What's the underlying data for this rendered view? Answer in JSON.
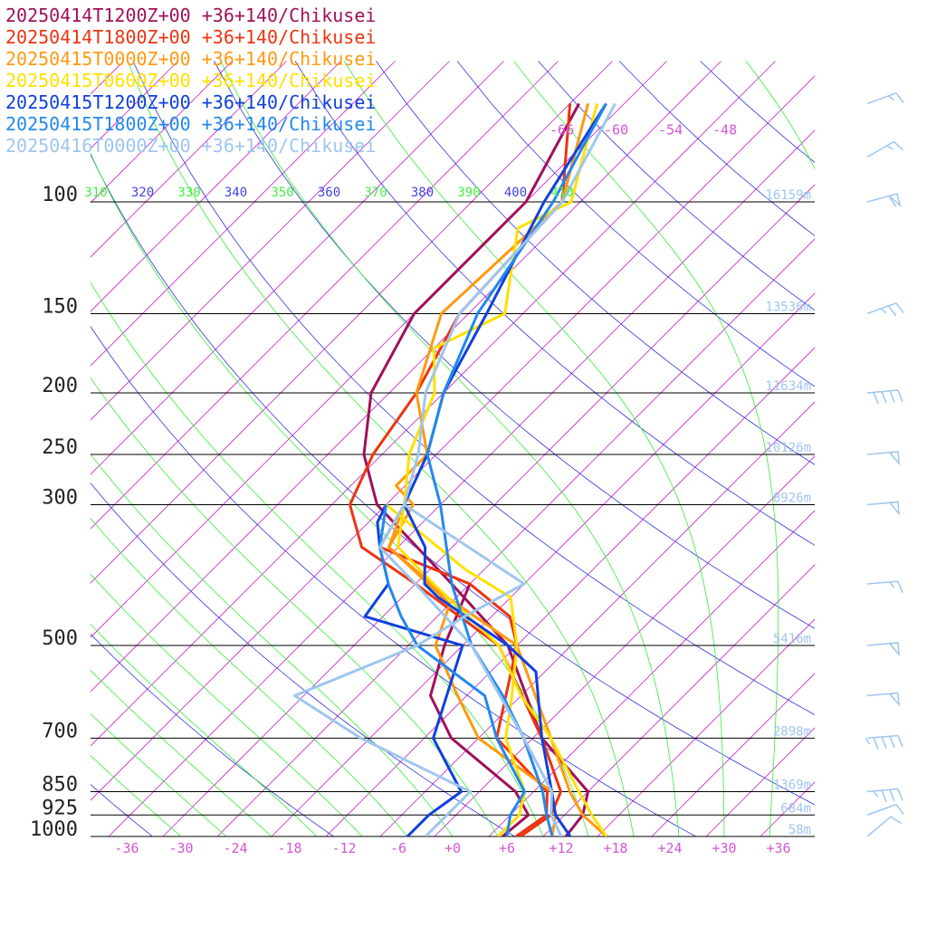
{
  "chart_data": {
    "type": "line",
    "title": "",
    "xlabel": "",
    "ylabel": "",
    "x_axis": {
      "ticks": [
        -36,
        -30,
        -24,
        -18,
        -12,
        -6,
        0,
        6,
        12,
        18,
        24,
        30,
        36
      ],
      "tick_labels": [
        "-36",
        "-30",
        "-24",
        "-18",
        "-12",
        "-6",
        "+0",
        "+6",
        "+12",
        "+18",
        "+24",
        "+30",
        "+36"
      ],
      "xlim": [
        -40,
        40
      ],
      "color": "#d455d4"
    },
    "y_axis": {
      "scale": "log",
      "ylim": [
        1000,
        100
      ],
      "levels": [
        100,
        150,
        200,
        250,
        300,
        500,
        700,
        850,
        925,
        1000
      ],
      "level_labels": [
        "100",
        "150",
        "200",
        "250",
        "300",
        "500",
        "700",
        "850",
        "925",
        "1000"
      ],
      "heights": [
        "16159m",
        "13536m",
        "11634m",
        "10126m",
        "8926m",
        "5416m",
        "2898m",
        "1369m",
        "684m",
        "58m"
      ],
      "height_levels": [
        100,
        150,
        200,
        250,
        300,
        500,
        700,
        850,
        925,
        1000
      ],
      "height_color": "#9ec6ef"
    },
    "upper_temp_labels": {
      "values": [
        "-66",
        "-60",
        "-54",
        "-48"
      ],
      "temps": [
        -66,
        -60,
        -54,
        -48
      ],
      "pressure": 77,
      "color": "#d455d4"
    },
    "theta_labels": {
      "values": [
        "310",
        "320",
        "330",
        "340",
        "350",
        "360",
        "370",
        "380",
        "390",
        "400",
        "410"
      ],
      "thetas": [
        310,
        320,
        330,
        340,
        350,
        360,
        370,
        380,
        390,
        400,
        410
      ],
      "colors": [
        "#44ee44",
        "#4444dd",
        "#44ee44",
        "#4444dd",
        "#44ee44",
        "#4444dd",
        "#44ee44",
        "#4444dd",
        "#44ee44",
        "#4444dd",
        "#44ee44"
      ]
    },
    "isotherm_color": "#cc22cc",
    "moist_adiabat_color": "#33ee33",
    "dry_adiabat_color": "#3333dd",
    "grid": true,
    "legend_position": "top-left",
    "series": [
      {
        "name": "20250414T1200Z+00 +36+140/Chikusei",
        "color": "#a0105a",
        "temperature": {
          "p": [
            1000,
            925,
            850,
            700,
            500,
            400,
            300,
            250,
            200,
            150,
            100,
            70
          ],
          "t": [
            12.5,
            12.0,
            10.0,
            -1.0,
            -15.0,
            -28.0,
            -45.0,
            -52.0,
            -58.0,
            -62.0,
            -62.0,
            -67.0
          ]
        },
        "dewpoint": {
          "p": [
            1000,
            925,
            850,
            700,
            600,
            500,
            400
          ],
          "t": [
            5.5,
            6.0,
            2.0,
            -11.0,
            -18.0,
            -22.0,
            -26.0
          ]
        }
      },
      {
        "name": "20250414T1800Z+00 +36+140/Chikusei",
        "color": "#ee3311",
        "temperature": {
          "p": [
            1000,
            925,
            850,
            700,
            500,
            400,
            350,
            300,
            250,
            200,
            150,
            100,
            70
          ],
          "t": [
            7.5,
            8.5,
            7.0,
            -1.0,
            -16.0,
            -32.0,
            -42.0,
            -48.0,
            -51.0,
            -53.0,
            -57.0,
            -58.0,
            -68.0
          ]
        },
        "dewpoint": {
          "p": [
            1000,
            925,
            850,
            700,
            500,
            450,
            400,
            350,
            300
          ],
          "t": [
            7.0,
            8.0,
            5.5,
            -6.0,
            -14.0,
            -18.0,
            -26.0,
            -40.0,
            -42.0
          ]
        }
      },
      {
        "name": "20250415T0000Z+00 +36+140/Chikusei",
        "color": "#ff9911",
        "temperature": {
          "p": [
            1000,
            925,
            850,
            700,
            500,
            420,
            350,
            300,
            280,
            250,
            200,
            150,
            100,
            70
          ],
          "t": [
            17.0,
            12.0,
            8.0,
            0.0,
            -14.0,
            -27.0,
            -39.0,
            -41.0,
            -45.0,
            -45.0,
            -53.0,
            -59.0,
            -58.0,
            -66.0
          ]
        },
        "dewpoint": {
          "p": [
            1000,
            925,
            850,
            700,
            600,
            500,
            430,
            350,
            300
          ],
          "t": [
            11.0,
            9.0,
            6.0,
            -8.0,
            -15.0,
            -23.0,
            -26.0,
            -39.0,
            -42.0
          ]
        }
      },
      {
        "name": "20250415T0600Z+00 +36+140/Chikusei",
        "color": "#ffe000",
        "temperature": {
          "p": [
            1000,
            925,
            850,
            700,
            600,
            500,
            400,
            350,
            300,
            250,
            200,
            170,
            150,
            110,
            100,
            70
          ],
          "t": [
            17.0,
            13.0,
            9.0,
            0.0,
            -8.0,
            -16.0,
            -30.0,
            -38.0,
            -42.0,
            -47.0,
            -51.0,
            -56.0,
            -52.0,
            -60.0,
            -57.0,
            -65.0
          ]
        },
        "dewpoint": {
          "p": [
            1000,
            925,
            850,
            700,
            600,
            500,
            420,
            380,
            300
          ],
          "t": [
            5.0,
            5.0,
            3.0,
            -5.0,
            -9.0,
            -14.0,
            -20.0,
            -28.0,
            -44.0
          ]
        }
      },
      {
        "name": "20250415T1200Z+00 +36+140/Chikusei",
        "color": "#1040dd",
        "temperature": {
          "p": [
            1000,
            925,
            850,
            700,
            550,
            500,
            420,
            400,
            350,
            300,
            250,
            200,
            150,
            100,
            70
          ],
          "t": [
            13.0,
            9.0,
            6.0,
            -1.0,
            -9.0,
            -15.0,
            -28.0,
            -31.0,
            -35.0,
            -42.0,
            -45.0,
            -50.0,
            -54.0,
            -60.0,
            -64.0
          ]
        },
        "dewpoint": {
          "p": [
            1000,
            925,
            850,
            700,
            500,
            450,
            400,
            350,
            320,
            300
          ],
          "t": [
            -5.0,
            -5.0,
            -4.0,
            -13.0,
            -20.0,
            -34.0,
            -35.0,
            -40.0,
            -43.0,
            -44.0
          ]
        }
      },
      {
        "name": "20250415T1800Z+00 +36+140/Chikusei",
        "color": "#2288ee",
        "temperature": {
          "p": [
            1000,
            925,
            850,
            700,
            600,
            500,
            400,
            300,
            250,
            200,
            150,
            100,
            70
          ],
          "t": [
            11.0,
            8.0,
            5.0,
            -3.0,
            -10.0,
            -19.0,
            -28.0,
            -38.0,
            -45.0,
            -50.0,
            -55.0,
            -59.0,
            -64.0
          ]
        },
        "dewpoint": {
          "p": [
            1000,
            925,
            850,
            700,
            600,
            500,
            450,
            400,
            350,
            300
          ],
          "t": [
            6.0,
            4.0,
            3.0,
            -6.0,
            -12.0,
            -25.0,
            -30.0,
            -35.0,
            -40.0,
            -44.0
          ]
        }
      },
      {
        "name": "20250416T0000Z+00 +36+140/Chikusei",
        "color": "#9ec6ef",
        "temperature": {
          "p": [
            1000,
            925,
            850,
            700,
            500,
            400,
            350,
            300,
            250,
            200,
            150,
            100,
            70
          ],
          "t": [
            12.0,
            8.5,
            6.0,
            -3.0,
            -19.0,
            -32.0,
            -40.0,
            -42.0,
            -46.0,
            -52.0,
            -57.0,
            -58.0,
            -63.0
          ]
        },
        "dewpoint": {
          "p": [
            1000,
            925,
            850,
            700,
            600,
            500,
            450,
            400,
            300
          ],
          "t": [
            -3.0,
            -3.0,
            -3.0,
            -21.0,
            -33.0,
            -25.0,
            -23.0,
            -20.0,
            -42.0
          ]
        }
      }
    ],
    "wind_barbs": {
      "color": "#9ec6ef",
      "pressures": [
        70,
        85,
        100,
        150,
        200,
        250,
        300,
        400,
        500,
        600,
        700,
        850,
        925,
        1000
      ],
      "direction_deg": [
        250,
        240,
        255,
        250,
        265,
        265,
        265,
        265,
        265,
        265,
        265,
        265,
        250,
        230
      ],
      "speed_kt": [
        15,
        15,
        60,
        25,
        40,
        55,
        50,
        15,
        55,
        55,
        45,
        35,
        10,
        10
      ]
    }
  }
}
